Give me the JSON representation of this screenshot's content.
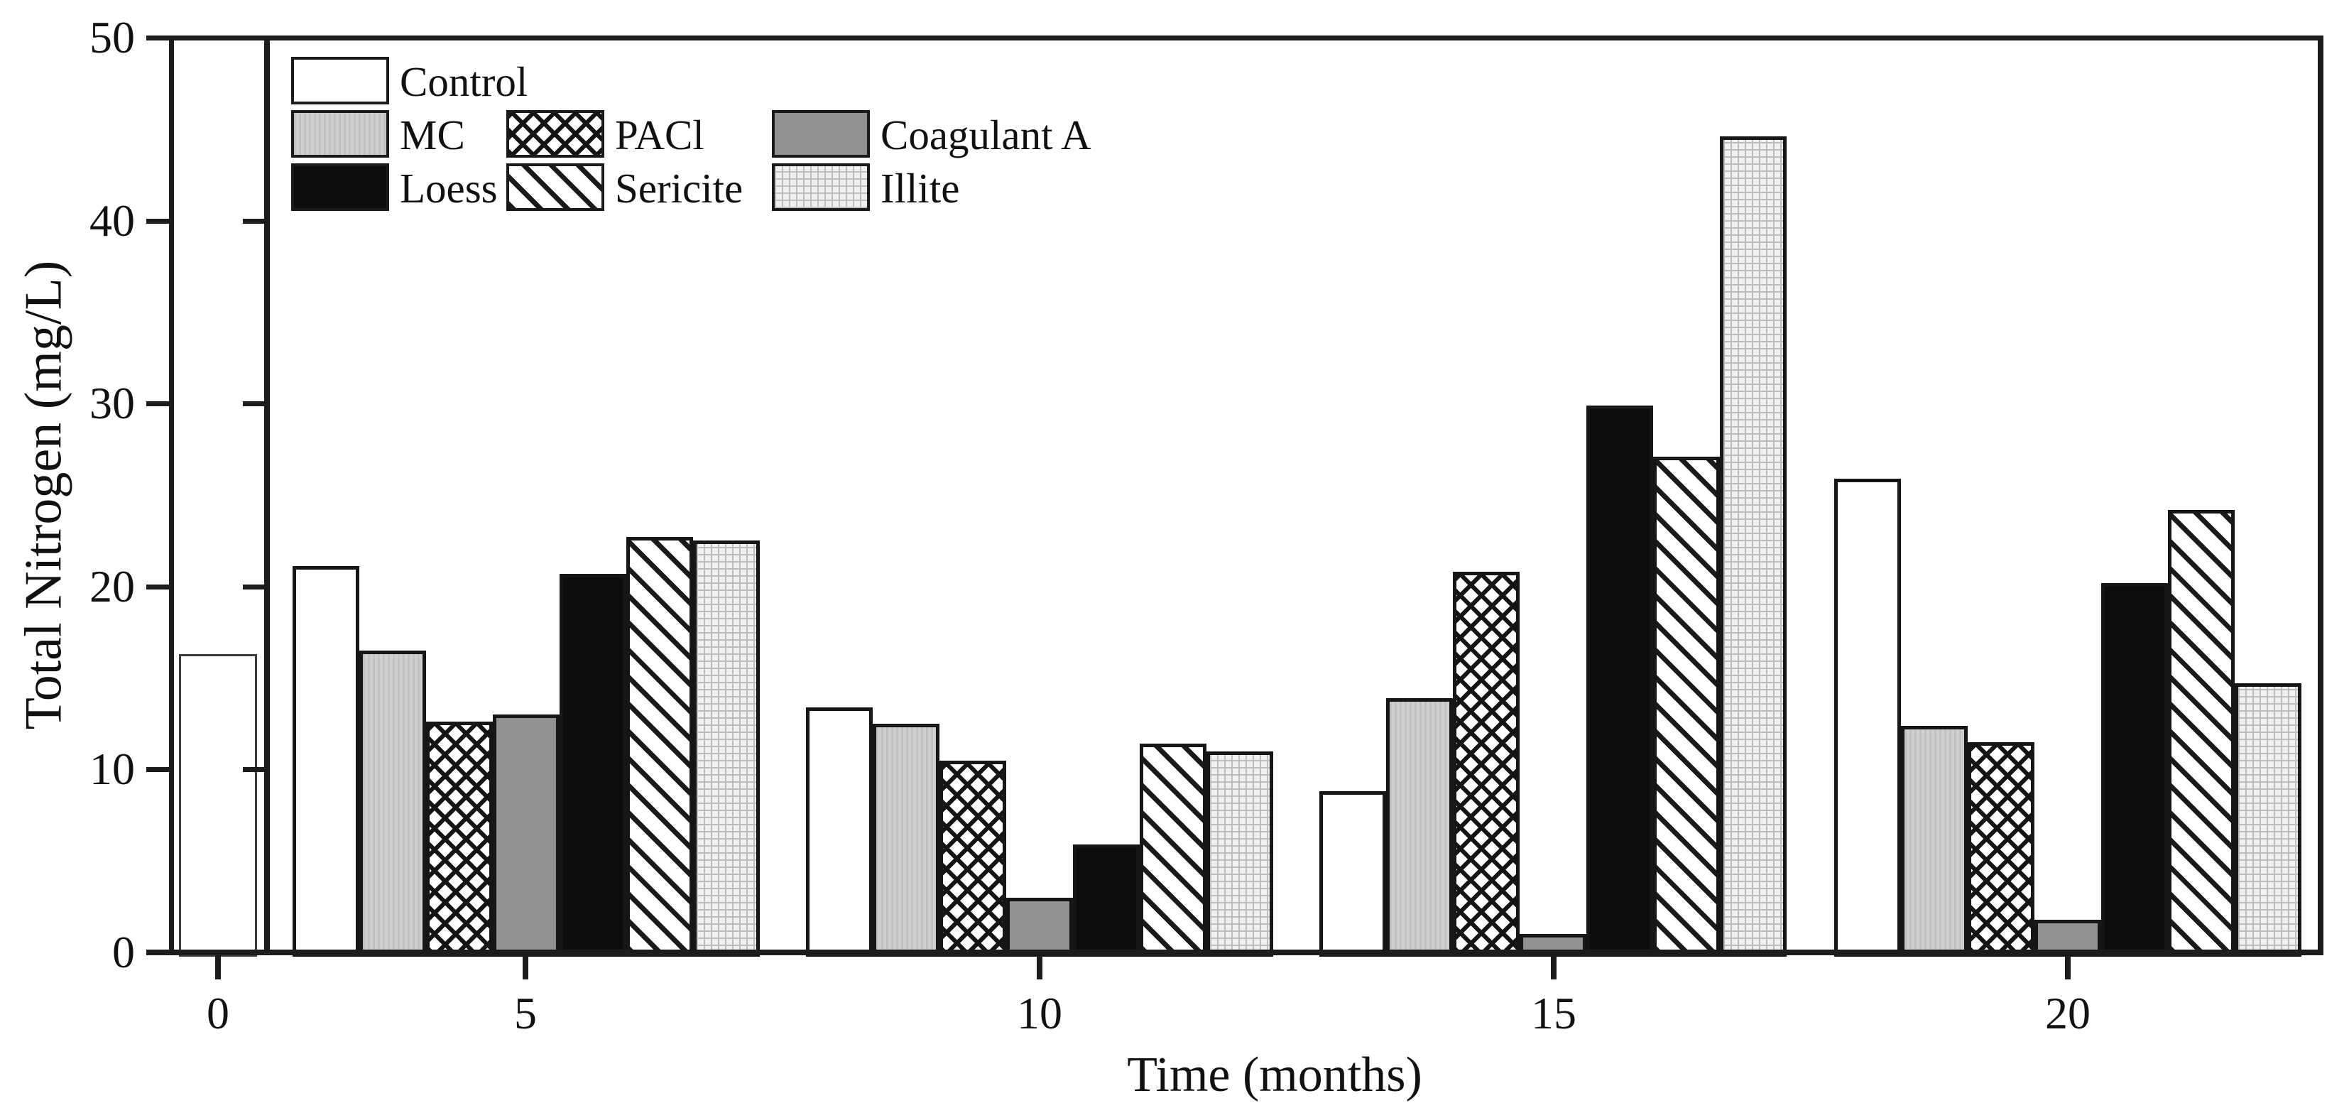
{
  "figure": {
    "background": "#ffffff",
    "axis_color": "#1c1c1c",
    "text_color": "#111111"
  },
  "chart_data": {
    "type": "bar",
    "title": "",
    "xlabel": "Time (months)",
    "ylabel": "Total Nitrogen (mg/L)",
    "x_categories": [
      "0",
      "5",
      "10",
      "15",
      "20"
    ],
    "yticks": [
      0,
      10,
      20,
      30,
      40,
      50
    ],
    "ylim": [
      0,
      50
    ],
    "grid": false,
    "legend_position": "top-left-inside",
    "series": [
      {
        "name": "Control",
        "pattern": "white",
        "values": [
          16.3,
          21.1,
          13.4,
          8.8,
          25.9
        ]
      },
      {
        "name": "MC",
        "pattern": "light-gray",
        "values": [
          null,
          16.5,
          12.5,
          13.9,
          12.4
        ]
      },
      {
        "name": "PACl",
        "pattern": "crosshatch",
        "values": [
          null,
          12.6,
          10.5,
          20.8,
          11.5
        ]
      },
      {
        "name": "Coagulant A",
        "pattern": "gray",
        "values": [
          null,
          13.0,
          3.0,
          1.0,
          1.8
        ]
      },
      {
        "name": "Loess",
        "pattern": "black",
        "values": [
          null,
          20.7,
          5.9,
          29.9,
          20.2
        ]
      },
      {
        "name": "Sericite",
        "pattern": "diagonal-hatch",
        "values": [
          null,
          22.7,
          11.4,
          27.1,
          24.2
        ]
      },
      {
        "name": "Illite",
        "pattern": "fine-grid",
        "values": [
          null,
          22.5,
          11.0,
          44.6,
          14.7
        ]
      }
    ],
    "note": "Only the Control bar is shown at month 0"
  },
  "legend": {
    "rows": [
      [
        {
          "label": "Control",
          "pattern": "white"
        }
      ],
      [
        {
          "label": "MC",
          "pattern": "light-gray"
        },
        {
          "label": "PACl",
          "pattern": "crosshatch"
        },
        {
          "label": "Coagulant A",
          "pattern": "gray"
        }
      ],
      [
        {
          "label": "Loess",
          "pattern": "black"
        },
        {
          "label": "Sericite",
          "pattern": "diagonal-hatch"
        },
        {
          "label": "Illite",
          "pattern": "fine-grid"
        }
      ]
    ]
  }
}
